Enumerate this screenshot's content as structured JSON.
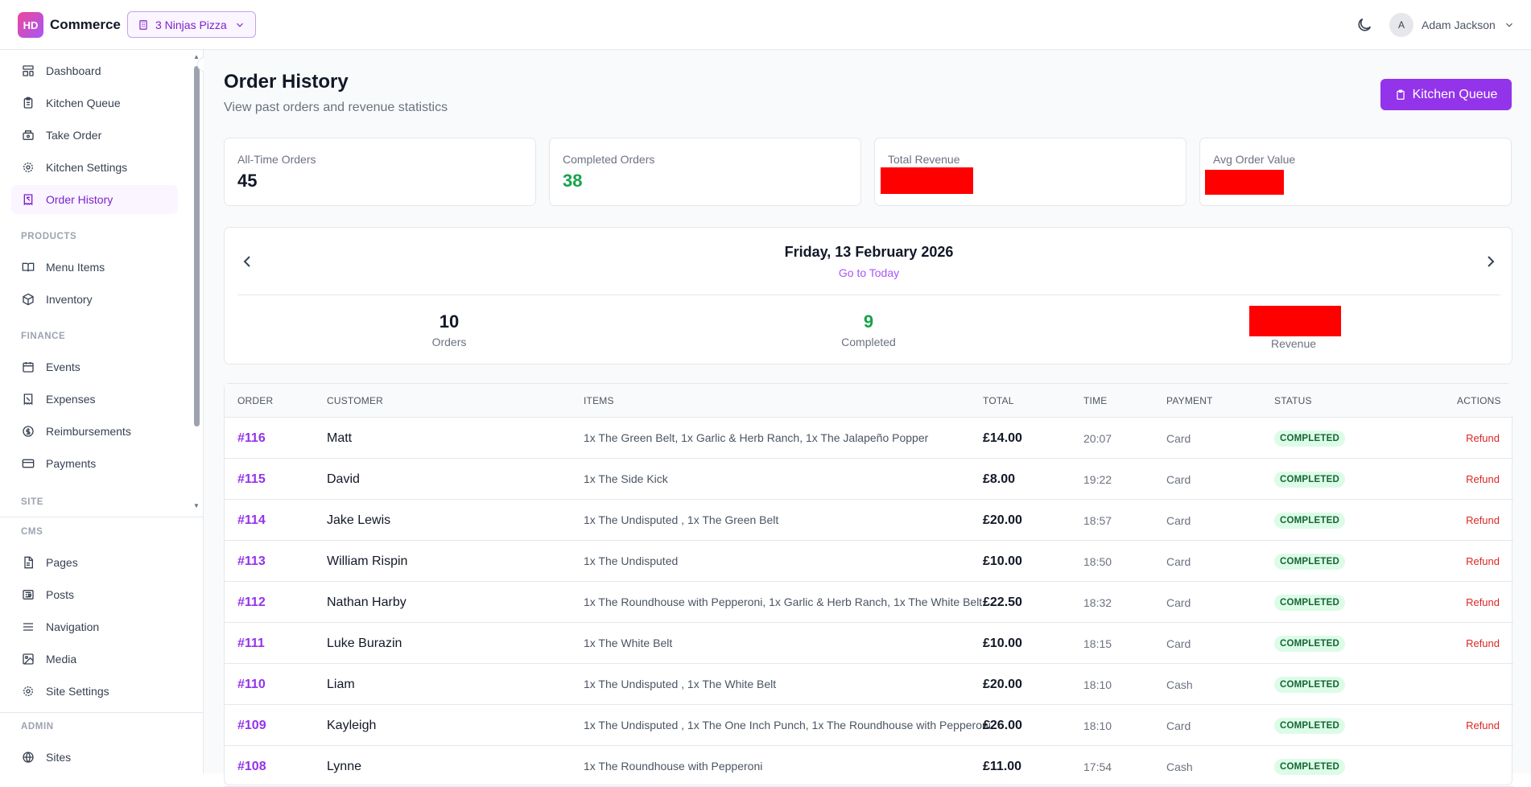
{
  "topbar": {
    "logo_initials": "HD",
    "brand": "Commerce",
    "tenant": "3 Ninjas Pizza",
    "user_initial": "A",
    "user_name": "Adam Jackson"
  },
  "sidebar": {
    "items_main": [
      {
        "label": "Dashboard",
        "icon": "dashboard-icon"
      },
      {
        "label": "Kitchen Queue",
        "icon": "clipboard-icon"
      },
      {
        "label": "Take Order",
        "icon": "cash-register-icon"
      },
      {
        "label": "Kitchen Settings",
        "icon": "gear-icon"
      },
      {
        "label": "Order History",
        "icon": "receipt-icon",
        "active": true
      }
    ],
    "section_products": "PRODUCTS",
    "items_products": [
      {
        "label": "Menu Items",
        "icon": "book-open-icon"
      },
      {
        "label": "Inventory",
        "icon": "box-icon"
      }
    ],
    "section_finance": "FINANCE",
    "items_finance": [
      {
        "label": "Events",
        "icon": "calendar-icon"
      },
      {
        "label": "Expenses",
        "icon": "receipt-icon"
      },
      {
        "label": "Reimbursements",
        "icon": "dollar-circle-icon"
      },
      {
        "label": "Payments",
        "icon": "credit-card-icon"
      }
    ],
    "section_site": "SITE",
    "section_cms": "CMS",
    "items_cms": [
      {
        "label": "Pages",
        "icon": "file-icon"
      },
      {
        "label": "Posts",
        "icon": "newspaper-icon"
      },
      {
        "label": "Navigation",
        "icon": "menu-icon"
      },
      {
        "label": "Media",
        "icon": "image-icon"
      },
      {
        "label": "Site Settings",
        "icon": "gear-icon"
      }
    ],
    "section_admin": "ADMIN",
    "items_admin": [
      {
        "label": "Sites",
        "icon": "globe-icon"
      }
    ]
  },
  "page": {
    "title": "Order History",
    "subtitle": "View past orders and revenue statistics",
    "kitchen_queue_button": "Kitchen Queue"
  },
  "stats": {
    "all_time_label": "All-Time Orders",
    "all_time_value": "45",
    "completed_label": "Completed Orders",
    "completed_value": "38",
    "revenue_label": "Total Revenue",
    "avg_label": "Avg Order Value"
  },
  "day": {
    "date": "Friday, 13 February 2026",
    "go_to_today": "Go to Today",
    "orders_value": "10",
    "orders_label": "Orders",
    "completed_value": "9",
    "completed_label": "Completed",
    "revenue_label": "Revenue"
  },
  "table": {
    "headers": {
      "order": "ORDER",
      "customer": "CUSTOMER",
      "items": "ITEMS",
      "total": "TOTAL",
      "time": "TIME",
      "payment": "PAYMENT",
      "status": "STATUS",
      "actions": "ACTIONS"
    },
    "rows": [
      {
        "order": "#116",
        "customer": "Matt",
        "items": "1x The Green Belt, 1x Garlic & Herb Ranch, 1x The Jalapeño Popper",
        "total": "£14.00",
        "time": "20:07",
        "payment": "Card",
        "status": "COMPLETED",
        "action": "Refund"
      },
      {
        "order": "#115",
        "customer": "David",
        "items": "1x The Side Kick",
        "total": "£8.00",
        "time": "19:22",
        "payment": "Card",
        "status": "COMPLETED",
        "action": "Refund"
      },
      {
        "order": "#114",
        "customer": "Jake Lewis",
        "items": "1x The Undisputed , 1x The Green Belt",
        "total": "£20.00",
        "time": "18:57",
        "payment": "Card",
        "status": "COMPLETED",
        "action": "Refund"
      },
      {
        "order": "#113",
        "customer": "William Rispin",
        "items": "1x The Undisputed",
        "total": "£10.00",
        "time": "18:50",
        "payment": "Card",
        "status": "COMPLETED",
        "action": "Refund"
      },
      {
        "order": "#112",
        "customer": "Nathan Harby",
        "items": "1x The Roundhouse with Pepperoni, 1x Garlic & Herb Ranch, 1x The White Belt",
        "total": "£22.50",
        "time": "18:32",
        "payment": "Card",
        "status": "COMPLETED",
        "action": "Refund"
      },
      {
        "order": "#111",
        "customer": "Luke Burazin",
        "items": "1x The White Belt",
        "total": "£10.00",
        "time": "18:15",
        "payment": "Card",
        "status": "COMPLETED",
        "action": "Refund"
      },
      {
        "order": "#110",
        "customer": "Liam",
        "items": "1x The Undisputed , 1x The White Belt",
        "total": "£20.00",
        "time": "18:10",
        "payment": "Cash",
        "status": "COMPLETED",
        "action": ""
      },
      {
        "order": "#109",
        "customer": "Kayleigh",
        "items": "1x The Undisputed , 1x The One Inch Punch, 1x The Roundhouse with Pepperoni",
        "total": "£26.00",
        "time": "18:10",
        "payment": "Card",
        "status": "COMPLETED",
        "action": "Refund"
      },
      {
        "order": "#108",
        "customer": "Lynne",
        "items": "1x The Roundhouse with Pepperoni",
        "total": "£11.00",
        "time": "17:54",
        "payment": "Cash",
        "status": "COMPLETED",
        "action": ""
      }
    ]
  },
  "colors": {
    "accent": "#9333ea",
    "success": "#16a34a",
    "danger": "#dc2626",
    "redaction": "#ff0000"
  }
}
